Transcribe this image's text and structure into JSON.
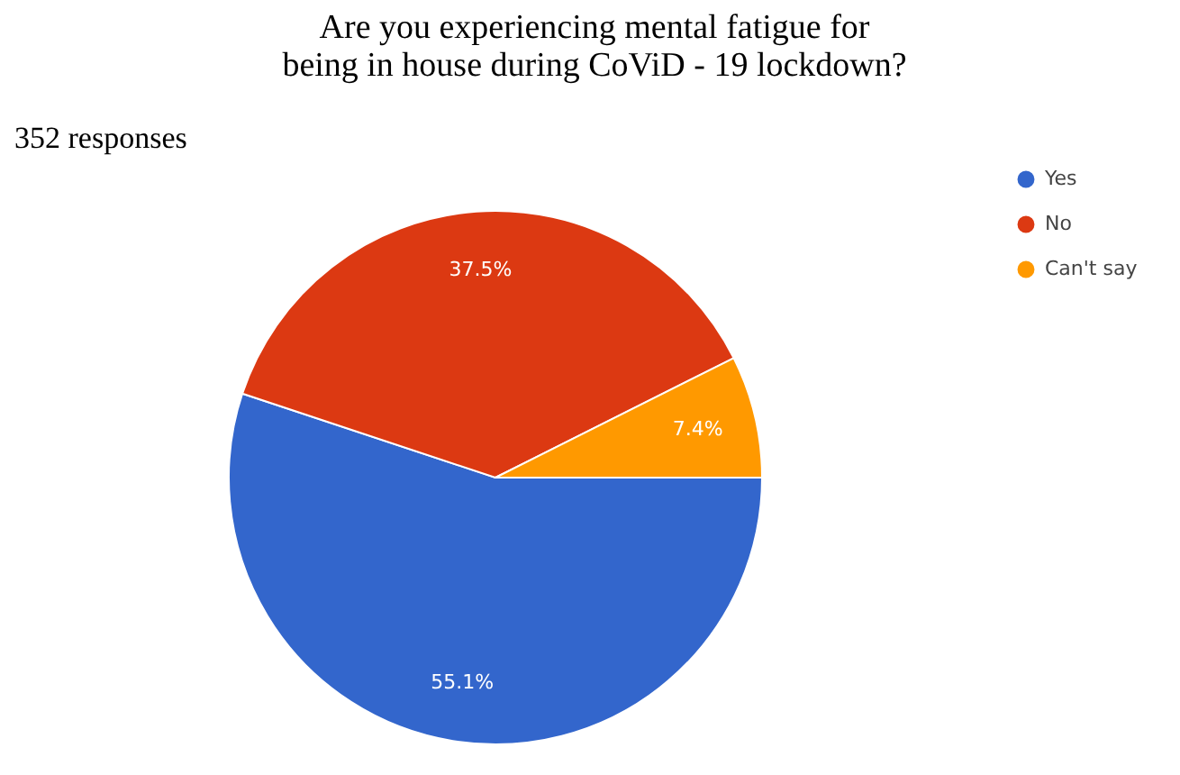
{
  "chart_data": {
    "type": "pie",
    "title": "Are you experiencing mental fatigue for being in house during CoViD - 19 lockdown?",
    "annotations": [
      "352 responses"
    ],
    "categories": [
      "Yes",
      "No",
      "Can't say"
    ],
    "values": [
      55.1,
      37.5,
      7.4
    ],
    "colors": [
      "#3366cc",
      "#dc3912",
      "#ff9900"
    ],
    "value_labels": [
      "55.1%",
      "37.5%",
      "7.4%"
    ],
    "legend": "top right"
  }
}
